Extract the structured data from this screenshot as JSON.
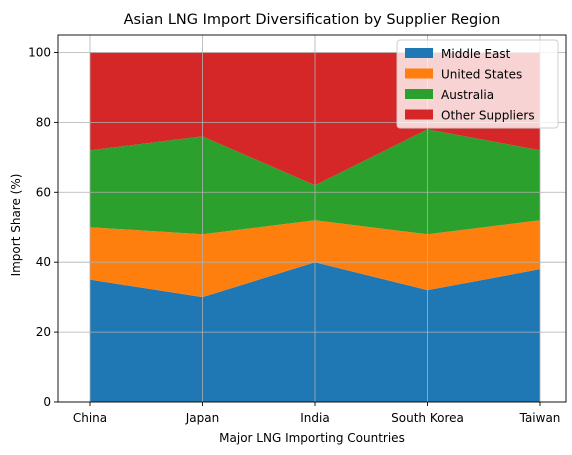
{
  "chart_data": {
    "type": "area",
    "stacked": true,
    "title": "Asian LNG Import Diversification by Supplier Region",
    "xlabel": "Major LNG Importing Countries",
    "ylabel": "Import Share (%)",
    "categories": [
      "China",
      "Japan",
      "India",
      "South Korea",
      "Taiwan"
    ],
    "ylim": [
      0,
      105
    ],
    "yticks": [
      0,
      20,
      40,
      60,
      80,
      100
    ],
    "grid": true,
    "legend_position": "top-right",
    "series": [
      {
        "name": "Middle East",
        "color": "#1f77b4",
        "values": [
          35,
          30,
          40,
          32,
          38
        ]
      },
      {
        "name": "United States",
        "color": "#ff7f0e",
        "values": [
          15,
          18,
          12,
          16,
          14
        ]
      },
      {
        "name": "Australia",
        "color": "#2ca02c",
        "values": [
          22,
          28,
          10,
          30,
          20
        ]
      },
      {
        "name": "Other Suppliers",
        "color": "#d62728",
        "values": [
          28,
          24,
          38,
          22,
          28
        ]
      }
    ]
  }
}
